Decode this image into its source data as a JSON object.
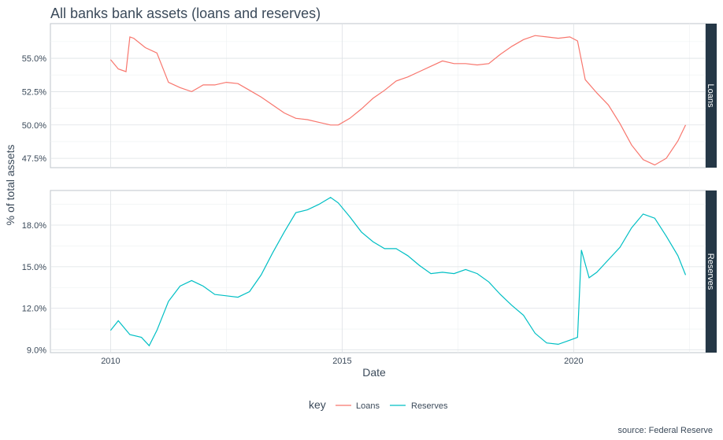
{
  "chart_data": {
    "type": "line",
    "title": "All banks bank assets (loans and reserves)",
    "xlabel": "Date",
    "ylabel": "% of total assets",
    "caption": "source: Federal Reserve",
    "legend": {
      "title": "key",
      "position": "bottom"
    },
    "grid": true,
    "x_ticks": [
      "2010",
      "2015",
      "2020"
    ],
    "colors": {
      "Loans": "#F8766D",
      "Reserves": "#00BFC4",
      "strip": "#253746"
    },
    "panels": [
      {
        "strip": "Loans",
        "ylim": [
          46.8,
          57.6
        ],
        "y_ticks": [
          47.5,
          50.0,
          52.5,
          55.0
        ],
        "y_tick_labels": [
          "47.5%",
          "50.0%",
          "52.5%",
          "55.0%"
        ]
      },
      {
        "strip": "Reserves",
        "ylim": [
          8.8,
          20.5
        ],
        "y_ticks": [
          9.0,
          12.0,
          15.0,
          18.0
        ],
        "y_tick_labels": [
          "9.0%",
          "12.0%",
          "15.0%",
          "18.0%"
        ]
      }
    ],
    "series": [
      {
        "name": "Loans",
        "x": [
          "2010-01",
          "2010-03",
          "2010-05",
          "2010-06",
          "2010-07",
          "2010-10",
          "2011-01",
          "2011-04",
          "2011-07",
          "2011-10",
          "2012-01",
          "2012-04",
          "2012-07",
          "2012-10",
          "2013-01",
          "2013-04",
          "2013-07",
          "2013-10",
          "2014-01",
          "2014-04",
          "2014-07",
          "2014-10",
          "2014-12",
          "2015-03",
          "2015-06",
          "2015-09",
          "2015-12",
          "2016-03",
          "2016-06",
          "2016-09",
          "2016-12",
          "2017-03",
          "2017-06",
          "2017-09",
          "2017-12",
          "2018-03",
          "2018-06",
          "2018-09",
          "2018-12",
          "2019-03",
          "2019-06",
          "2019-09",
          "2019-12",
          "2020-02",
          "2020-04",
          "2020-07",
          "2020-10",
          "2021-01",
          "2021-04",
          "2021-07",
          "2021-10",
          "2022-01",
          "2022-04",
          "2022-06"
        ],
        "values": [
          54.9,
          54.2,
          54.0,
          56.6,
          56.5,
          55.8,
          55.4,
          53.2,
          52.8,
          52.5,
          53.0,
          53.0,
          53.2,
          53.1,
          52.6,
          52.1,
          51.5,
          50.9,
          50.5,
          50.4,
          50.2,
          50.0,
          50.0,
          50.5,
          51.2,
          52.0,
          52.6,
          53.3,
          53.6,
          54.0,
          54.4,
          54.8,
          54.6,
          54.6,
          54.5,
          54.6,
          55.3,
          55.9,
          56.4,
          56.7,
          56.6,
          56.5,
          56.6,
          56.3,
          53.4,
          52.4,
          51.5,
          50.1,
          48.5,
          47.4,
          47.0,
          47.5,
          48.8,
          50.0
        ]
      },
      {
        "name": "Reserves",
        "x": [
          "2010-01",
          "2010-03",
          "2010-06",
          "2010-09",
          "2010-11",
          "2011-01",
          "2011-04",
          "2011-07",
          "2011-10",
          "2012-01",
          "2012-04",
          "2012-07",
          "2012-10",
          "2013-01",
          "2013-04",
          "2013-07",
          "2013-10",
          "2014-01",
          "2014-04",
          "2014-07",
          "2014-10",
          "2014-12",
          "2015-03",
          "2015-06",
          "2015-09",
          "2015-12",
          "2016-03",
          "2016-06",
          "2016-09",
          "2016-12",
          "2017-03",
          "2017-06",
          "2017-09",
          "2017-12",
          "2018-03",
          "2018-06",
          "2018-09",
          "2018-12",
          "2019-03",
          "2019-06",
          "2019-09",
          "2019-12",
          "2020-02",
          "2020-03",
          "2020-05",
          "2020-07",
          "2020-10",
          "2021-01",
          "2021-04",
          "2021-07",
          "2021-10",
          "2022-01",
          "2022-04",
          "2022-06"
        ],
        "values": [
          10.4,
          11.1,
          10.1,
          9.9,
          9.3,
          10.4,
          12.5,
          13.6,
          14.0,
          13.6,
          13.0,
          12.9,
          12.8,
          13.2,
          14.4,
          16.0,
          17.5,
          18.9,
          19.1,
          19.5,
          20.0,
          19.6,
          18.6,
          17.5,
          16.8,
          16.3,
          16.3,
          15.8,
          15.1,
          14.5,
          14.6,
          14.5,
          14.8,
          14.5,
          13.9,
          13.0,
          12.2,
          11.5,
          10.2,
          9.5,
          9.4,
          9.7,
          9.9,
          16.2,
          14.2,
          14.6,
          15.5,
          16.4,
          17.8,
          18.8,
          18.5,
          17.2,
          15.8,
          14.4
        ]
      }
    ]
  }
}
